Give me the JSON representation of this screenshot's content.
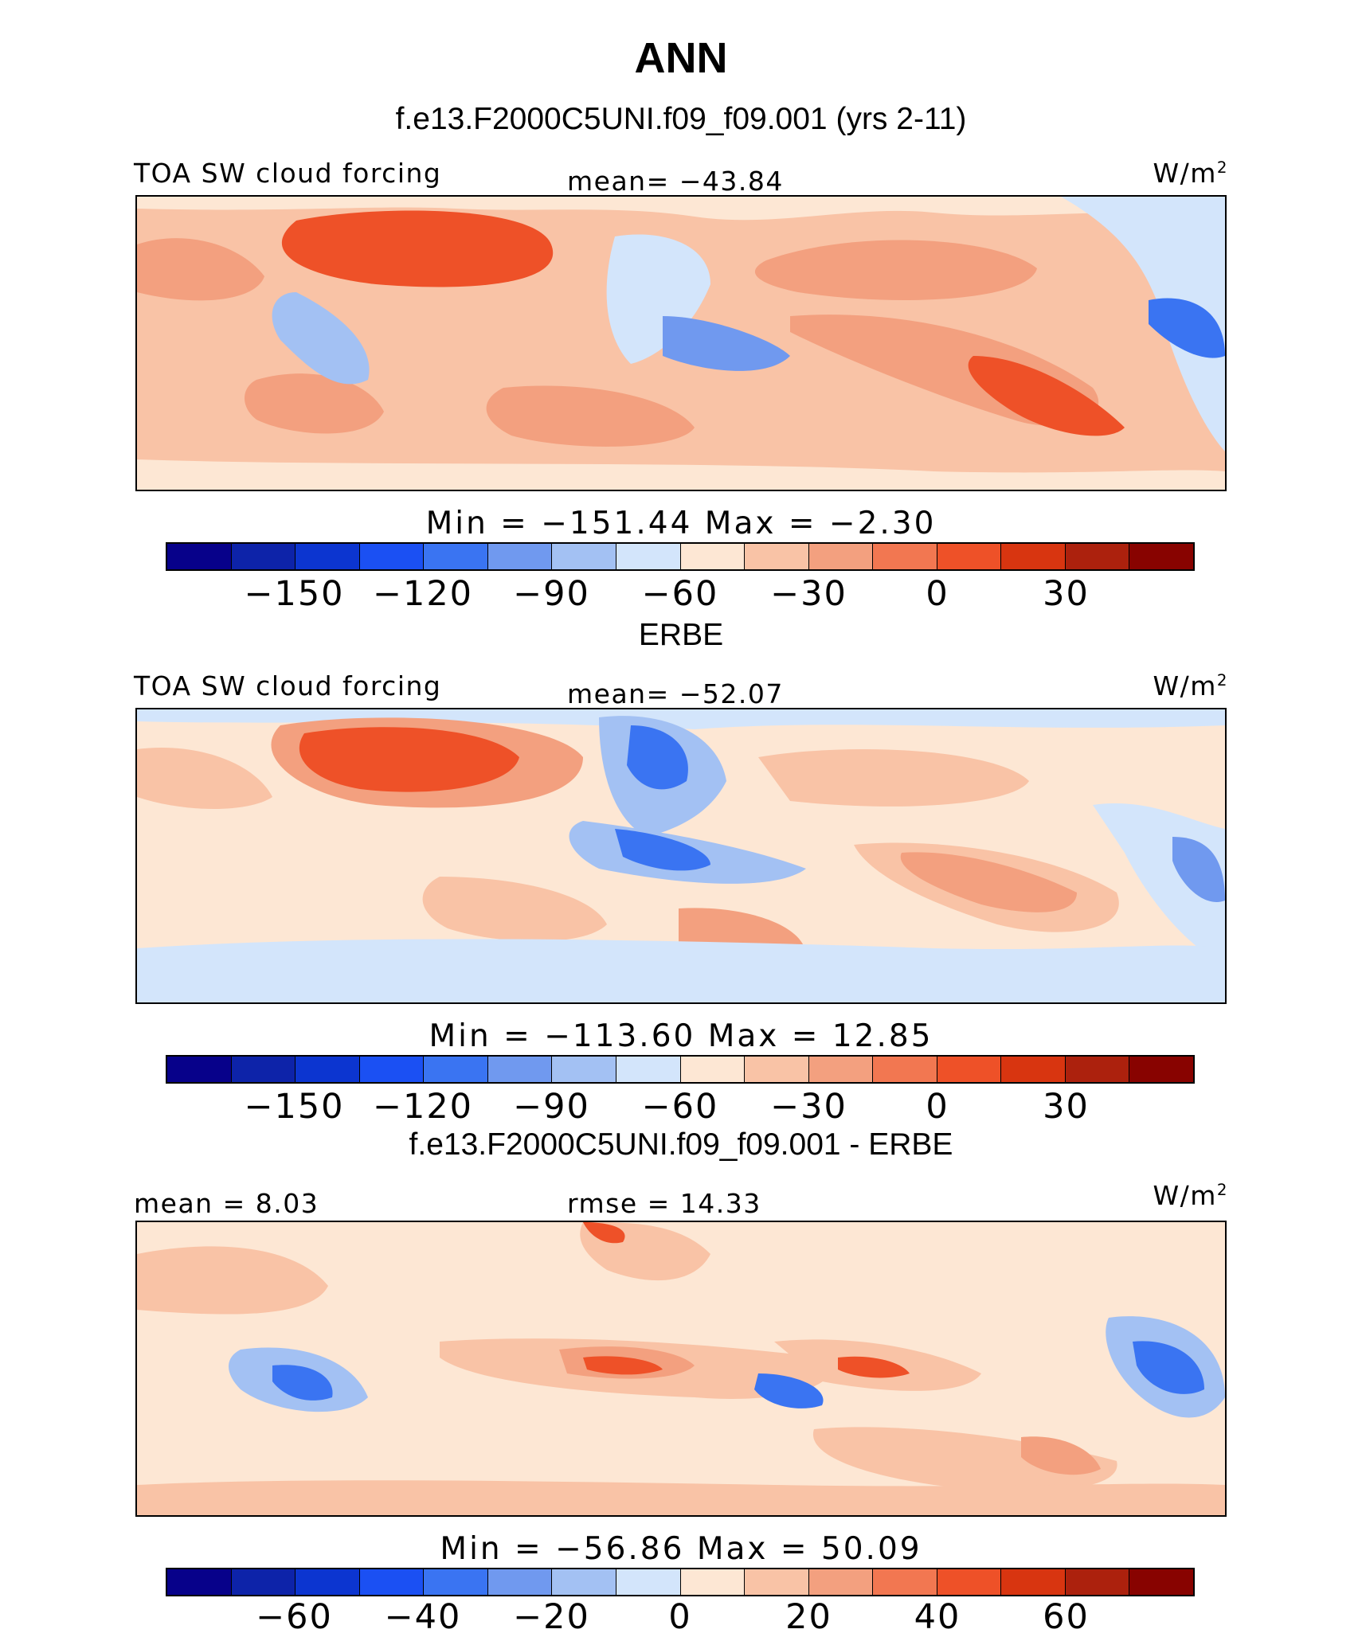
{
  "page_title": "ANN",
  "colors": [
    "#07018a",
    "#0d23a9",
    "#0c35d0",
    "#1b50f3",
    "#3a74f2",
    "#7099ef",
    "#a3c1f3",
    "#d3e5fb",
    "#fde7d4",
    "#f9c3a6",
    "#f3a07f",
    "#f27751",
    "#ee5128",
    "#d83510",
    "#ac210d",
    "#880300"
  ],
  "chart_data": [
    {
      "type": "heatmap",
      "title": "f.e13.F2000C5UNI.f09_f09.001 (yrs 2-11)",
      "left_label": "TOA SW cloud forcing",
      "center_label": "mean= −43.84",
      "units": "W/m",
      "units_sup": "2",
      "minmax_label": "Min  =  −151.44  Max  =   −2.30",
      "stats": {
        "mean": -43.84,
        "min": -151.44,
        "max": -2.3
      },
      "colorbar_ticks": [
        "−150",
        "−120",
        "−90",
        "−60",
        "−30",
        "0",
        "30"
      ],
      "colorbar_tick_values": [
        -150,
        -120,
        -90,
        -60,
        -30,
        0,
        30
      ],
      "colorbar_levels": [
        -165,
        -150,
        -135,
        -120,
        -105,
        -90,
        -75,
        -60,
        -45,
        -30,
        -15,
        0,
        15,
        30,
        45
      ]
    },
    {
      "type": "heatmap",
      "title": "ERBE",
      "left_label": "TOA SW cloud forcing",
      "center_label": "mean= −52.07",
      "units": "W/m",
      "units_sup": "2",
      "minmax_label": "Min  =  −113.60  Max  =   12.85",
      "stats": {
        "mean": -52.07,
        "min": -113.6,
        "max": 12.85
      },
      "colorbar_ticks": [
        "−150",
        "−120",
        "−90",
        "−60",
        "−30",
        "0",
        "30"
      ],
      "colorbar_tick_values": [
        -150,
        -120,
        -90,
        -60,
        -30,
        0,
        30
      ],
      "colorbar_levels": [
        -165,
        -150,
        -135,
        -120,
        -105,
        -90,
        -75,
        -60,
        -45,
        -30,
        -15,
        0,
        15,
        30,
        45
      ]
    },
    {
      "type": "heatmap",
      "title": "f.e13.F2000C5UNI.f09_f09.001 - ERBE",
      "left_label": "mean  =    8.03",
      "center_label": "rmse  =   14.33",
      "units": "W/m",
      "units_sup": "2",
      "minmax_label": "Min  =  −56.86  Max  =   50.09",
      "stats": {
        "mean": 8.03,
        "rmse": 14.33,
        "min": -56.86,
        "max": 50.09
      },
      "colorbar_ticks": [
        "−60",
        "−40",
        "−20",
        "0",
        "20",
        "40",
        "60"
      ],
      "colorbar_tick_values": [
        -60,
        -40,
        -20,
        0,
        20,
        40,
        60
      ],
      "colorbar_levels": [
        -70,
        -60,
        -50,
        -40,
        -30,
        -20,
        -10,
        0,
        10,
        20,
        30,
        40,
        50,
        60,
        70
      ]
    }
  ]
}
